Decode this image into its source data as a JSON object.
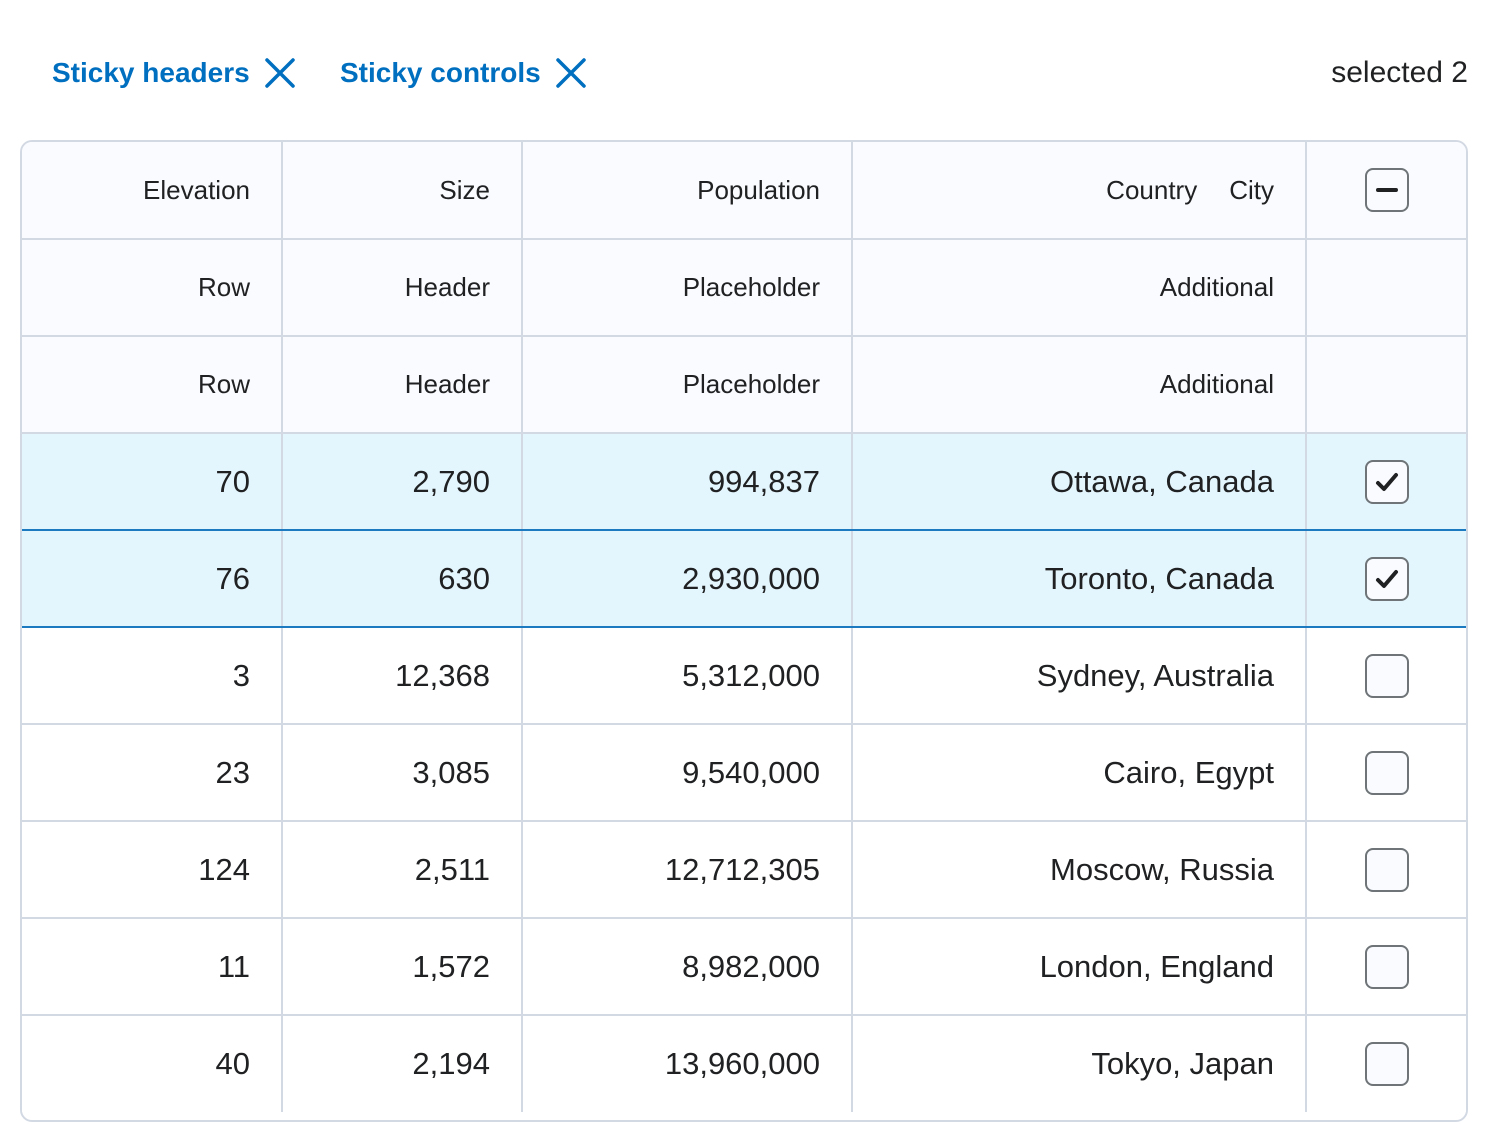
{
  "filters": {
    "chips": [
      {
        "label": "Sticky headers",
        "remove_icon": "close-icon"
      },
      {
        "label": "Sticky controls",
        "remove_icon": "close-icon"
      }
    ],
    "selected_text": "selected 2"
  },
  "table": {
    "headers": {
      "elevation": "Elevation",
      "size": "Size",
      "population": "Population",
      "country": "Country",
      "city": "City"
    },
    "extra_header_rows": [
      [
        "Row",
        "Header",
        "Placeholder",
        "Additional"
      ],
      [
        "Row",
        "Header",
        "Placeholder",
        "Additional"
      ]
    ],
    "select_all_state": "indeterminate",
    "rows": [
      {
        "elevation": "70",
        "size": "2,790",
        "population": "994,837",
        "location": "Ottawa, Canada",
        "selected": true
      },
      {
        "elevation": "76",
        "size": "630",
        "population": "2,930,000",
        "location": "Toronto, Canada",
        "selected": true
      },
      {
        "elevation": "3",
        "size": "12,368",
        "population": "5,312,000",
        "location": "Sydney, Australia",
        "selected": false
      },
      {
        "elevation": "23",
        "size": "3,085",
        "population": "9,540,000",
        "location": "Cairo, Egypt",
        "selected": false
      },
      {
        "elevation": "124",
        "size": "2,511",
        "population": "12,712,305",
        "location": "Moscow, Russia",
        "selected": false
      },
      {
        "elevation": "11",
        "size": "1,572",
        "population": "8,982,000",
        "location": "London, England",
        "selected": false
      },
      {
        "elevation": "40",
        "size": "2,194",
        "population": "13,960,000",
        "location": "Tokyo, Japan",
        "selected": false
      }
    ]
  },
  "colors": {
    "accent": "#006fbf",
    "selected_row_bg": "#e4f6fd",
    "selected_row_border": "#1c7ac0",
    "grid_border": "#d3d9e3",
    "header_bg": "#f9fbff"
  }
}
